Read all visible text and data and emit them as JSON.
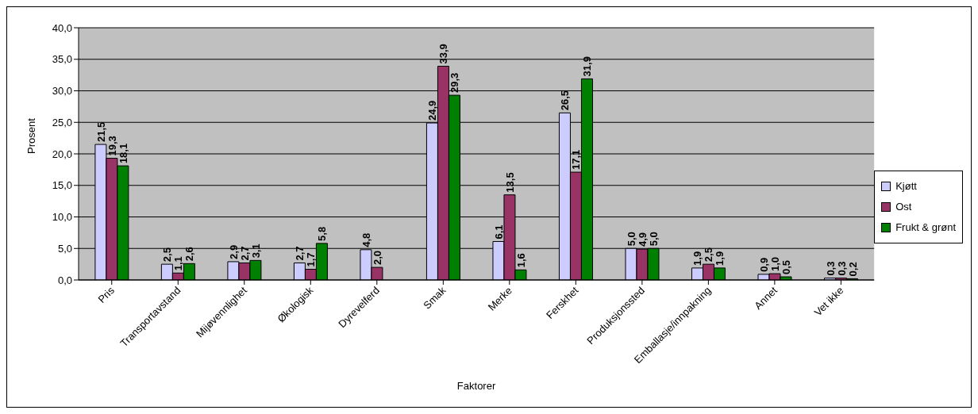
{
  "chart_data": {
    "type": "bar",
    "xlabel": "Faktorer",
    "ylabel": "Prosent",
    "categories": [
      "Pris",
      "Transportavstand",
      "Mijøvennlighet",
      "Økologisk",
      "Dyrevelferd",
      "Smak",
      "Merke",
      "Ferskhet",
      "Produksjonssted",
      "Emballasje/innpakning",
      "Annet",
      "Vet ikke"
    ],
    "series": [
      {
        "name": "Kjøtt",
        "color": "#ccccff",
        "values": [
          21.5,
          2.5,
          2.9,
          2.7,
          4.8,
          24.9,
          6.1,
          26.5,
          5.0,
          1.9,
          0.9,
          0.3
        ],
        "value_labels": [
          "21,5",
          "2,5",
          "2,9",
          "2,7",
          "4,8",
          "24,9",
          "6,1",
          "26,5",
          "5,0",
          "1,9",
          "0,9",
          "0,3"
        ]
      },
      {
        "name": "Ost",
        "color": "#993366",
        "values": [
          19.3,
          1.1,
          2.7,
          1.7,
          2.0,
          33.9,
          13.5,
          17.1,
          4.9,
          2.5,
          1.0,
          0.3
        ],
        "value_labels": [
          "19,3",
          "1,1",
          "2,7",
          "1,7",
          "2,0",
          "33,9",
          "13,5",
          "17,1",
          "4,9",
          "2,5",
          "1,0",
          "0,3"
        ]
      },
      {
        "name": "Frukt & grønt",
        "color": "#008000",
        "values": [
          18.1,
          2.6,
          3.1,
          5.8,
          null,
          29.3,
          1.6,
          31.9,
          5.0,
          1.9,
          0.5,
          0.2
        ],
        "value_labels": [
          "18,1",
          "2,6",
          "3,1",
          "5,8",
          null,
          "29,3",
          "1,6",
          "31,9",
          "5,0",
          "1,9",
          "0,5",
          "0,2"
        ]
      }
    ],
    "ylim": [
      0,
      40
    ],
    "yticks": [
      {
        "value": 0,
        "label": "0,0"
      },
      {
        "value": 5,
        "label": "5,0"
      },
      {
        "value": 10,
        "label": "10,0"
      },
      {
        "value": 15,
        "label": "15,0"
      },
      {
        "value": 20,
        "label": "20,0"
      },
      {
        "value": 25,
        "label": "25,0"
      },
      {
        "value": 30,
        "label": "30,0"
      },
      {
        "value": 35,
        "label": "35,0"
      },
      {
        "value": 40,
        "label": "40,0"
      }
    ],
    "grid": "y",
    "legend": "right"
  }
}
